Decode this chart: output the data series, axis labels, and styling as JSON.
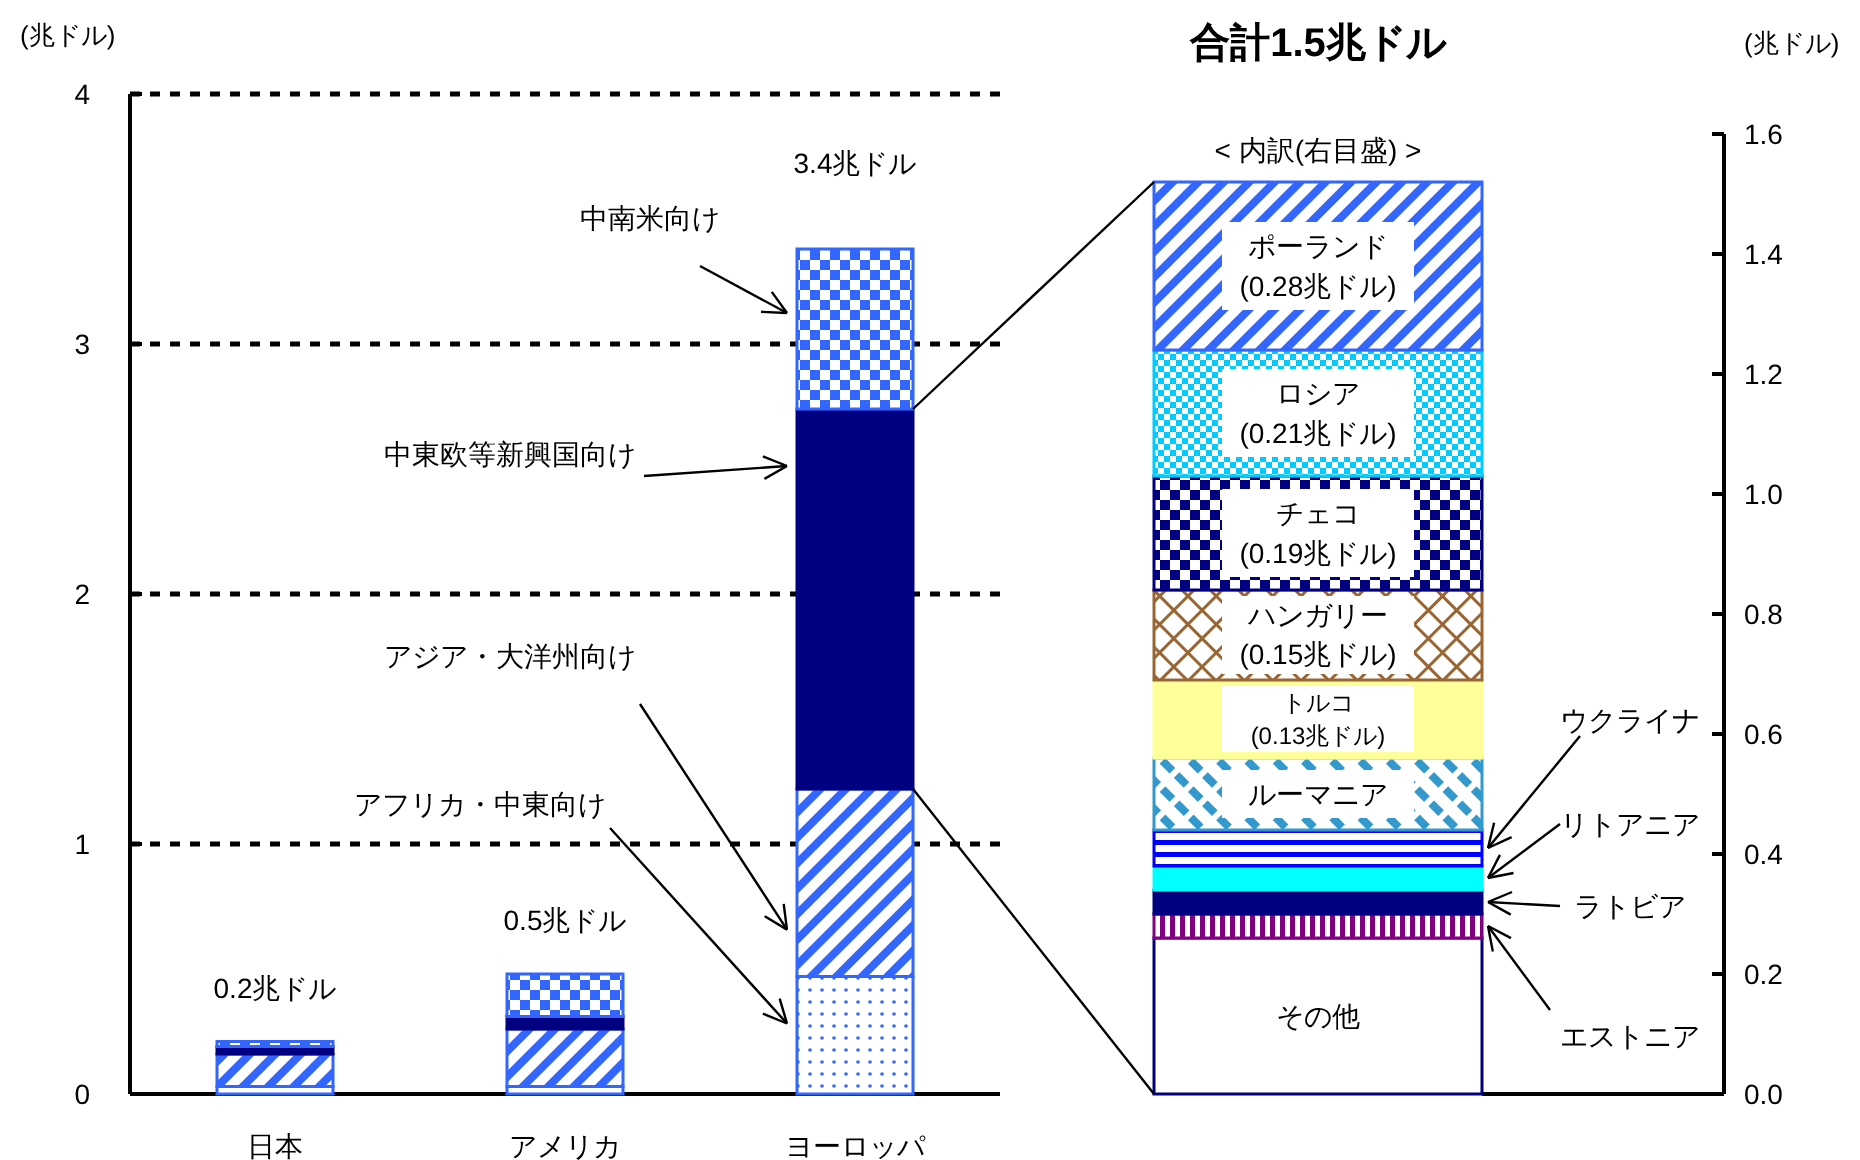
{
  "chart_data": [
    {
      "type": "bar",
      "stacked": true,
      "ylabel": "(兆ドル)",
      "categories": [
        "日本",
        "アメリカ",
        "ヨーロッパ"
      ],
      "series": [
        {
          "name": "アフリカ・中東向け",
          "color": "#3366ff",
          "values": [
            0.03,
            0.03,
            0.47
          ]
        },
        {
          "name": "アジア・大洋州向け",
          "color": "#3366ff",
          "values": [
            0.13,
            0.23,
            0.75
          ]
        },
        {
          "name": "中東欧等新興国向け",
          "color": "#000080",
          "values": [
            0.03,
            0.05,
            1.52
          ]
        },
        {
          "name": "中南米向け",
          "color": "#3366ff",
          "values": [
            0.02,
            0.17,
            0.64
          ]
        }
      ],
      "totals": [
        "0.2兆ドル",
        "0.5兆ドル",
        "3.4兆ドル"
      ],
      "ylim": [
        0,
        4
      ],
      "yticks": [
        0,
        1,
        2,
        3,
        4
      ],
      "grid": "y"
    },
    {
      "type": "bar",
      "stacked": true,
      "title": "合計1.5兆ドル",
      "subtitle": "< 内訳(右目盛) >",
      "ylabel": "(兆ドル)",
      "categories": [
        null
      ],
      "series": [
        {
          "name": "その他",
          "color": "#ffffff",
          "values": [
            0.26
          ]
        },
        {
          "name": "エストニア",
          "color": "#800080",
          "values": [
            0.04
          ]
        },
        {
          "name": "ラトビア",
          "color": "#000080",
          "values": [
            0.04
          ]
        },
        {
          "name": "リトアニア",
          "color": "#00ffff",
          "values": [
            0.04
          ]
        },
        {
          "name": "ウクライナ",
          "color": "#0000ff",
          "values": [
            0.06
          ]
        },
        {
          "name": "ルーマニア",
          "color": "#3399cc",
          "values": [
            0.12
          ]
        },
        {
          "name": "トルコ",
          "color": "#ffff99",
          "values": [
            0.13
          ],
          "value_labels": [
            "(0.13兆ドル)"
          ]
        },
        {
          "name": "ハンガリー",
          "color": "#996633",
          "values": [
            0.15
          ],
          "value_labels": [
            "(0.15兆ドル)"
          ]
        },
        {
          "name": "チェコ",
          "color": "#000080",
          "values": [
            0.19
          ],
          "value_labels": [
            "(0.19兆ドル)"
          ]
        },
        {
          "name": "ロシア",
          "color": "#00ccff",
          "values": [
            0.21
          ],
          "value_labels": [
            "(0.21兆ドル)"
          ]
        },
        {
          "name": "ポーランド",
          "color": "#3366ff",
          "values": [
            0.28
          ],
          "value_labels": [
            "(0.28兆ドル)"
          ]
        }
      ],
      "ylim": [
        0,
        1.6
      ],
      "yticks": [
        {
          "value": 0,
          "label": "0.0"
        },
        {
          "value": 0.2,
          "label": "0.2"
        },
        {
          "value": 0.4,
          "label": "0.4"
        },
        {
          "value": 0.6,
          "label": "0.6"
        },
        {
          "value": 0.8,
          "label": "0.8"
        },
        {
          "value": 1,
          "label": "1.0"
        },
        {
          "value": 1.2,
          "label": "1.2"
        },
        {
          "value": 1.4,
          "label": "1.4"
        },
        {
          "value": 1.6,
          "label": "1.6"
        }
      ]
    }
  ]
}
